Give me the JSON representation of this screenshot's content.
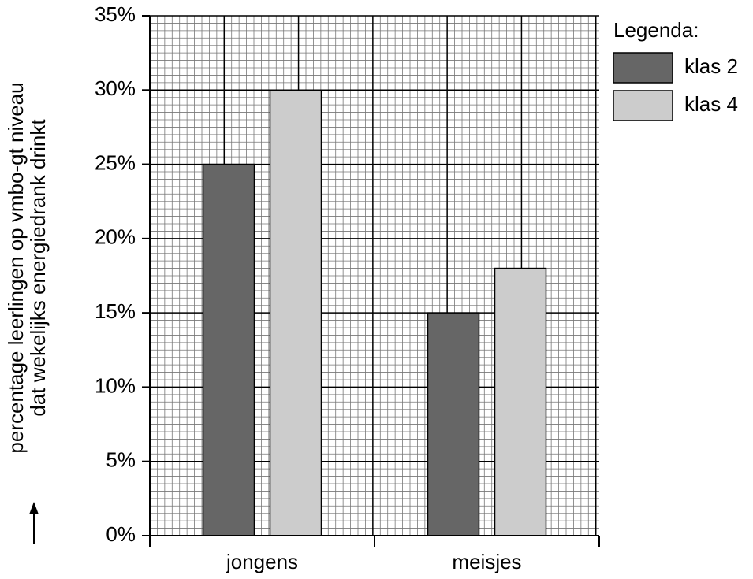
{
  "chart_data": {
    "type": "bar",
    "ylabel": [
      "percentage leerlingen op vmbo-gt niveau",
      "dat wekelijks energiedrank drinkt"
    ],
    "categories": [
      "jongens",
      "meisjes"
    ],
    "series": [
      {
        "name": "klas 2",
        "color": "#666666",
        "values": [
          25,
          15
        ]
      },
      {
        "name": "klas 4",
        "color": "#cccccc",
        "values": [
          30,
          18
        ]
      }
    ],
    "ylim": [
      0,
      35
    ],
    "yticks": [
      {
        "value": 0,
        "label": "0%"
      },
      {
        "value": 5,
        "label": "5%"
      },
      {
        "value": 10,
        "label": "10%"
      },
      {
        "value": 15,
        "label": "15%"
      },
      {
        "value": 20,
        "label": "20%"
      },
      {
        "value": 25,
        "label": "25%"
      },
      {
        "value": 30,
        "label": "30%"
      },
      {
        "value": 35,
        "label": "35%"
      }
    ],
    "grid": true,
    "legend_title": "Legenda:",
    "legend": "upper right"
  }
}
